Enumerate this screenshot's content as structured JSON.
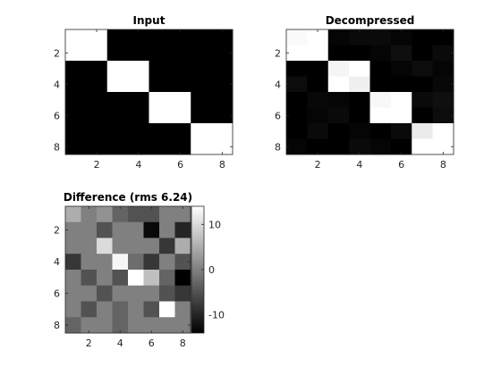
{
  "chart_data": [
    {
      "type": "heatmap",
      "title": "Input",
      "x": [
        1,
        2,
        3,
        4,
        5,
        6,
        7,
        8
      ],
      "y": [
        1,
        2,
        3,
        4,
        5,
        6,
        7,
        8
      ],
      "xticks": [
        "2",
        "4",
        "6",
        "8"
      ],
      "yticks": [
        "2",
        "4",
        "6",
        "8"
      ],
      "colormap": "gray",
      "clim": [
        0,
        255
      ],
      "z": [
        [
          255,
          255,
          0,
          0,
          0,
          0,
          0,
          0
        ],
        [
          255,
          255,
          0,
          0,
          0,
          0,
          0,
          0
        ],
        [
          0,
          0,
          255,
          255,
          0,
          0,
          0,
          0
        ],
        [
          0,
          0,
          255,
          255,
          0,
          0,
          0,
          0
        ],
        [
          0,
          0,
          0,
          0,
          255,
          255,
          0,
          0
        ],
        [
          0,
          0,
          0,
          0,
          255,
          255,
          0,
          0
        ],
        [
          0,
          0,
          0,
          0,
          0,
          0,
          255,
          255
        ],
        [
          0,
          0,
          0,
          0,
          0,
          0,
          255,
          255
        ]
      ]
    },
    {
      "type": "heatmap",
      "title": "Decompressed",
      "x": [
        1,
        2,
        3,
        4,
        5,
        6,
        7,
        8
      ],
      "y": [
        1,
        2,
        3,
        4,
        5,
        6,
        7,
        8
      ],
      "xticks": [
        "2",
        "4",
        "6",
        "8"
      ],
      "yticks": [
        "2",
        "4",
        "6",
        "8"
      ],
      "colormap": "gray",
      "clim": [
        0,
        255
      ],
      "z": [
        [
          250,
          255,
          5,
          10,
          10,
          5,
          0,
          0
        ],
        [
          255,
          255,
          0,
          0,
          5,
          15,
          0,
          10
        ],
        [
          0,
          0,
          245,
          255,
          0,
          5,
          12,
          5
        ],
        [
          12,
          0,
          255,
          240,
          0,
          0,
          0,
          8
        ],
        [
          0,
          8,
          5,
          0,
          248,
          255,
          10,
          15
        ],
        [
          0,
          5,
          10,
          0,
          255,
          255,
          0,
          12
        ],
        [
          0,
          10,
          0,
          5,
          0,
          10,
          235,
          255
        ],
        [
          5,
          0,
          0,
          10,
          5,
          0,
          255,
          255
        ]
      ]
    },
    {
      "type": "heatmap",
      "title": "Difference (rms 6.24)",
      "x": [
        1,
        2,
        3,
        4,
        5,
        6,
        7,
        8
      ],
      "y": [
        1,
        2,
        3,
        4,
        5,
        6,
        7,
        8
      ],
      "xticks": [
        "2",
        "4",
        "6",
        "8"
      ],
      "yticks": [
        "2",
        "4",
        "6",
        "8"
      ],
      "colormap": "gray",
      "clim": [
        -14,
        14
      ],
      "colorbar_ticks": [
        "10",
        "0",
        "-10"
      ],
      "colorbar_tick_values": [
        10,
        0,
        -10
      ],
      "z": [
        [
          5,
          0,
          2,
          -3,
          -5,
          -5,
          0,
          0
        ],
        [
          0,
          0,
          -5,
          0,
          0,
          -13,
          0,
          -10
        ],
        [
          0,
          0,
          10,
          0,
          0,
          0,
          -8,
          5
        ],
        [
          -8,
          0,
          0,
          13,
          -2,
          -8,
          0,
          -5
        ],
        [
          0,
          -5,
          0,
          -5,
          14,
          7,
          -3,
          -15
        ],
        [
          0,
          0,
          -5,
          0,
          0,
          0,
          -5,
          -8
        ],
        [
          0,
          -5,
          0,
          -3,
          0,
          -5,
          14,
          0
        ],
        [
          -3,
          0,
          0,
          -3,
          0,
          0,
          0,
          0
        ]
      ]
    }
  ]
}
